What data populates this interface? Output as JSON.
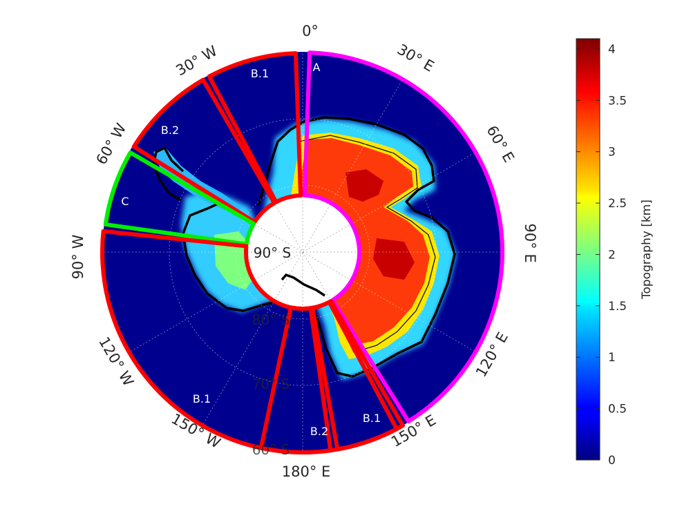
{
  "map": {
    "center_label": "90° S",
    "lon_labels": [
      {
        "key": "0",
        "text": "0°"
      },
      {
        "key": "30e",
        "text": "30° E"
      },
      {
        "key": "60e",
        "text": "60° E"
      },
      {
        "key": "90e",
        "text": "90° E"
      },
      {
        "key": "120e",
        "text": "120° E"
      },
      {
        "key": "150e",
        "text": "150° E"
      },
      {
        "key": "180",
        "text": "180° E"
      },
      {
        "key": "150w",
        "text": "150° W"
      },
      {
        "key": "120w",
        "text": "120° W"
      },
      {
        "key": "90w",
        "text": "90° W"
      },
      {
        "key": "60w",
        "text": "60° W"
      },
      {
        "key": "30w",
        "text": "30° W"
      }
    ],
    "lat_labels": [
      {
        "key": "80",
        "text": "80° S"
      },
      {
        "key": "70",
        "text": "70° S"
      },
      {
        "key": "60",
        "text": "60° S"
      }
    ],
    "regions": [
      {
        "key": "A",
        "label": "A",
        "color": "#ff00ff"
      },
      {
        "key": "B1a",
        "label": "B.1",
        "color": "#ff0000"
      },
      {
        "key": "B2a",
        "label": "B.2",
        "color": "#ff0000"
      },
      {
        "key": "C",
        "label": "C",
        "color": "#00ee00"
      },
      {
        "key": "B1b",
        "label": "B.1",
        "color": "#ff0000"
      },
      {
        "key": "B2b",
        "label": "B.2",
        "color": "#ff0000"
      },
      {
        "key": "B1c",
        "label": "B.1",
        "color": "#ff0000"
      }
    ]
  },
  "colorbar": {
    "title": "Topography [km]",
    "min": 0,
    "max": 4.1,
    "colormap": "jet",
    "ticks": [
      "0",
      "0.5",
      "1",
      "1.5",
      "2",
      "2.5",
      "3",
      "3.5",
      "4"
    ]
  }
}
